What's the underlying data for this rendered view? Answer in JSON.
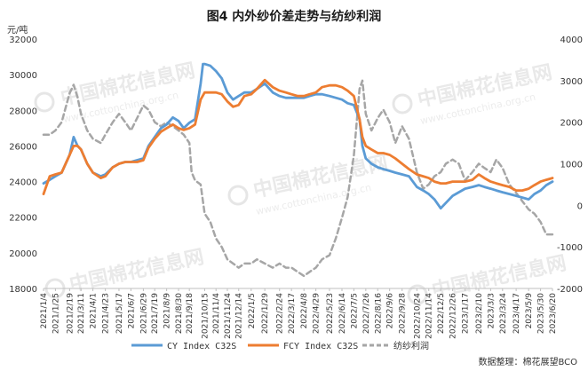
{
  "chart_data": {
    "type": "line",
    "title": "图4  内外纱价差走势与纺纱利润",
    "y_left_unit": "元/吨",
    "ylim_left": [
      18000,
      32000
    ],
    "yticks_left": [
      "18000",
      "20000",
      "22000",
      "24000",
      "26000",
      "28000",
      "30000",
      "32000"
    ],
    "ylim_right": [
      -2000,
      4000
    ],
    "yticks_right": [
      "-2000",
      "-1000",
      "0",
      "1000",
      "2000",
      "3000",
      "4000"
    ],
    "x_start": "2021/1/4",
    "x_end": "2023/6/20",
    "x_tick_labels": [
      "2021/1/4",
      "2021/1/25",
      "2021/2/19",
      "2021/3/11",
      "2021/4/1",
      "2021/4/23",
      "2021/5/17",
      "2021/6/7",
      "2021/6/29",
      "2021/7/19",
      "2021/8/9",
      "2021/8/30",
      "2021/9/18",
      "2021/10/15",
      "2021/11/4",
      "2021/11/24",
      "2021/12/14",
      "2022/1/5",
      "2022/1/29",
      "2022/2/24",
      "2022/3/17",
      "2022/4/8",
      "2022/4/29",
      "2022/5/23",
      "2022/6/14",
      "2022/7/5",
      "2022/7/26",
      "2022/8/16",
      "2022/9/6",
      "2022/9/28",
      "2022/10/24",
      "2022/11/14",
      "2022/12/5",
      "2022/12/26",
      "2023/1/17",
      "2023/2/10",
      "2023/3/3",
      "2023/3/24",
      "2023/4/17",
      "2023/5/9",
      "2023/5/30",
      "2023/6/20"
    ],
    "series": [
      {
        "name": "CY Index C32S",
        "axis": "left",
        "color": "#5b9bd5",
        "style": "solid",
        "points": [
          [
            "2021/1/4",
            23900
          ],
          [
            "2021/1/15",
            24100
          ],
          [
            "2021/1/25",
            24300
          ],
          [
            "2021/2/5",
            24500
          ],
          [
            "2021/2/19",
            25500
          ],
          [
            "2021/2/26",
            26500
          ],
          [
            "2021/3/5",
            26000
          ],
          [
            "2021/3/11",
            25800
          ],
          [
            "2021/3/22",
            25000
          ],
          [
            "2021/4/1",
            24500
          ],
          [
            "2021/4/15",
            24300
          ],
          [
            "2021/4/23",
            24400
          ],
          [
            "2021/5/6",
            24800
          ],
          [
            "2021/5/17",
            25000
          ],
          [
            "2021/5/28",
            25100
          ],
          [
            "2021/6/7",
            25100
          ],
          [
            "2021/6/18",
            25200
          ],
          [
            "2021/6/29",
            25300
          ],
          [
            "2021/7/8",
            26000
          ],
          [
            "2021/7/19",
            26500
          ],
          [
            "2021/7/30",
            27000
          ],
          [
            "2021/8/9",
            27200
          ],
          [
            "2021/8/20",
            27600
          ],
          [
            "2021/8/30",
            27400
          ],
          [
            "2021/9/8",
            27000
          ],
          [
            "2021/9/18",
            27300
          ],
          [
            "2021/9/28",
            27500
          ],
          [
            "2021/10/8",
            29500
          ],
          [
            "2021/10/12",
            30600
          ],
          [
            "2021/10/15",
            30600
          ],
          [
            "2021/10/25",
            30500
          ],
          [
            "2021/11/4",
            30200
          ],
          [
            "2021/11/14",
            29800
          ],
          [
            "2021/11/24",
            29000
          ],
          [
            "2021/12/4",
            28600
          ],
          [
            "2021/12/14",
            28800
          ],
          [
            "2021/12/24",
            29000
          ],
          [
            "2022/1/5",
            29000
          ],
          [
            "2022/1/15",
            29200
          ],
          [
            "2022/1/29",
            29500
          ],
          [
            "2022/2/12",
            29000
          ],
          [
            "2022/2/24",
            28800
          ],
          [
            "2022/3/7",
            28700
          ],
          [
            "2022/3/17",
            28700
          ],
          [
            "2022/3/28",
            28700
          ],
          [
            "2022/4/8",
            28700
          ],
          [
            "2022/4/18",
            28800
          ],
          [
            "2022/4/29",
            28900
          ],
          [
            "2022/5/10",
            28900
          ],
          [
            "2022/5/23",
            28800
          ],
          [
            "2022/6/3",
            28700
          ],
          [
            "2022/6/14",
            28600
          ],
          [
            "2022/6/24",
            28400
          ],
          [
            "2022/7/5",
            28300
          ],
          [
            "2022/7/15",
            27500
          ],
          [
            "2022/7/20",
            26000
          ],
          [
            "2022/7/26",
            25300
          ],
          [
            "2022/8/5",
            25000
          ],
          [
            "2022/8/16",
            24800
          ],
          [
            "2022/8/26",
            24700
          ],
          [
            "2022/9/6",
            24600
          ],
          [
            "2022/9/16",
            24500
          ],
          [
            "2022/9/28",
            24400
          ],
          [
            "2022/10/10",
            24300
          ],
          [
            "2022/10/24",
            23700
          ],
          [
            "2022/11/4",
            23500
          ],
          [
            "2022/11/14",
            23300
          ],
          [
            "2022/11/24",
            23000
          ],
          [
            "2022/12/5",
            22500
          ],
          [
            "2022/12/14",
            22800
          ],
          [
            "2022/12/26",
            23200
          ],
          [
            "2023/1/6",
            23400
          ],
          [
            "2023/1/17",
            23600
          ],
          [
            "2023/1/30",
            23700
          ],
          [
            "2023/2/10",
            23800
          ],
          [
            "2023/2/20",
            23700
          ],
          [
            "2023/3/3",
            23600
          ],
          [
            "2023/3/13",
            23500
          ],
          [
            "2023/3/24",
            23400
          ],
          [
            "2023/4/5",
            23300
          ],
          [
            "2023/4/17",
            23200
          ],
          [
            "2023/4/28",
            23100
          ],
          [
            "2023/5/9",
            23000
          ],
          [
            "2023/5/19",
            23300
          ],
          [
            "2023/5/30",
            23500
          ],
          [
            "2023/6/9",
            23800
          ],
          [
            "2023/6/20",
            24000
          ]
        ]
      },
      {
        "name": "FCY Index C32S",
        "axis": "left",
        "color": "#ed7d31",
        "style": "solid",
        "points": [
          [
            "2021/1/4",
            23300
          ],
          [
            "2021/1/15",
            24300
          ],
          [
            "2021/1/25",
            24400
          ],
          [
            "2021/2/5",
            24500
          ],
          [
            "2021/2/19",
            25500
          ],
          [
            "2021/2/26",
            26000
          ],
          [
            "2021/3/5",
            26000
          ],
          [
            "2021/3/11",
            25800
          ],
          [
            "2021/3/22",
            25000
          ],
          [
            "2021/4/1",
            24500
          ],
          [
            "2021/4/15",
            24200
          ],
          [
            "2021/4/23",
            24300
          ],
          [
            "2021/5/6",
            24800
          ],
          [
            "2021/5/17",
            25000
          ],
          [
            "2021/5/28",
            25100
          ],
          [
            "2021/6/7",
            25100
          ],
          [
            "2021/6/18",
            25100
          ],
          [
            "2021/6/29",
            25200
          ],
          [
            "2021/7/8",
            25900
          ],
          [
            "2021/7/19",
            26400
          ],
          [
            "2021/7/30",
            26800
          ],
          [
            "2021/8/9",
            27000
          ],
          [
            "2021/8/20",
            27200
          ],
          [
            "2021/8/30",
            27000
          ],
          [
            "2021/9/8",
            26900
          ],
          [
            "2021/9/18",
            27000
          ],
          [
            "2021/9/28",
            27200
          ],
          [
            "2021/10/8",
            28600
          ],
          [
            "2021/10/15",
            29000
          ],
          [
            "2021/10/25",
            29000
          ],
          [
            "2021/11/4",
            29000
          ],
          [
            "2021/11/14",
            28900
          ],
          [
            "2021/11/24",
            28500
          ],
          [
            "2021/12/4",
            28200
          ],
          [
            "2021/12/14",
            28300
          ],
          [
            "2021/12/24",
            28800
          ],
          [
            "2022/1/5",
            28900
          ],
          [
            "2022/1/15",
            29200
          ],
          [
            "2022/1/29",
            29700
          ],
          [
            "2022/2/12",
            29300
          ],
          [
            "2022/2/24",
            29100
          ],
          [
            "2022/3/7",
            29000
          ],
          [
            "2022/3/17",
            28900
          ],
          [
            "2022/3/28",
            28800
          ],
          [
            "2022/4/8",
            28800
          ],
          [
            "2022/4/18",
            28900
          ],
          [
            "2022/4/29",
            29000
          ],
          [
            "2022/5/10",
            29300
          ],
          [
            "2022/5/23",
            29400
          ],
          [
            "2022/6/3",
            29400
          ],
          [
            "2022/6/14",
            29300
          ],
          [
            "2022/6/24",
            29100
          ],
          [
            "2022/7/5",
            28800
          ],
          [
            "2022/7/15",
            27500
          ],
          [
            "2022/7/20",
            26500
          ],
          [
            "2022/7/26",
            26000
          ],
          [
            "2022/8/5",
            25800
          ],
          [
            "2022/8/16",
            25600
          ],
          [
            "2022/8/26",
            25600
          ],
          [
            "2022/9/6",
            25500
          ],
          [
            "2022/9/16",
            25300
          ],
          [
            "2022/9/28",
            25000
          ],
          [
            "2022/10/10",
            24700
          ],
          [
            "2022/10/24",
            24400
          ],
          [
            "2022/11/4",
            24300
          ],
          [
            "2022/11/14",
            24200
          ],
          [
            "2022/11/24",
            24000
          ],
          [
            "2022/12/5",
            23900
          ],
          [
            "2022/12/14",
            23900
          ],
          [
            "2022/12/26",
            24000
          ],
          [
            "2023/1/6",
            24000
          ],
          [
            "2023/1/17",
            24000
          ],
          [
            "2023/1/30",
            24100
          ],
          [
            "2023/2/10",
            24400
          ],
          [
            "2023/2/20",
            24200
          ],
          [
            "2023/3/3",
            24000
          ],
          [
            "2023/3/13",
            23900
          ],
          [
            "2023/3/24",
            23800
          ],
          [
            "2023/4/5",
            23700
          ],
          [
            "2023/4/17",
            23500
          ],
          [
            "2023/4/28",
            23500
          ],
          [
            "2023/5/9",
            23600
          ],
          [
            "2023/5/19",
            23800
          ],
          [
            "2023/5/30",
            24000
          ],
          [
            "2023/6/9",
            24100
          ],
          [
            "2023/6/20",
            24200
          ]
        ]
      },
      {
        "name": "纺纱利润",
        "axis": "right",
        "color": "#a6a6a6",
        "style": "dashed",
        "points": [
          [
            "2021/1/4",
            1700
          ],
          [
            "2021/1/15",
            1700
          ],
          [
            "2021/1/25",
            1800
          ],
          [
            "2021/2/5",
            2000
          ],
          [
            "2021/2/19",
            2700
          ],
          [
            "2021/2/26",
            2900
          ],
          [
            "2021/3/5",
            2600
          ],
          [
            "2021/3/11",
            2200
          ],
          [
            "2021/3/22",
            1800
          ],
          [
            "2021/4/1",
            1600
          ],
          [
            "2021/4/15",
            1500
          ],
          [
            "2021/4/23",
            1700
          ],
          [
            "2021/5/6",
            2000
          ],
          [
            "2021/5/17",
            2200
          ],
          [
            "2021/5/28",
            2000
          ],
          [
            "2021/6/7",
            1800
          ],
          [
            "2021/6/18",
            2100
          ],
          [
            "2021/6/29",
            2400
          ],
          [
            "2021/7/8",
            2300
          ],
          [
            "2021/7/19",
            2000
          ],
          [
            "2021/7/30",
            1900
          ],
          [
            "2021/8/9",
            2000
          ],
          [
            "2021/8/20",
            1900
          ],
          [
            "2021/8/30",
            1800
          ],
          [
            "2021/9/8",
            1700
          ],
          [
            "2021/9/18",
            1500
          ],
          [
            "2021/9/22",
            800
          ],
          [
            "2021/9/28",
            600
          ],
          [
            "2021/10/8",
            500
          ],
          [
            "2021/10/15",
            -200
          ],
          [
            "2021/10/25",
            -400
          ],
          [
            "2021/11/4",
            -800
          ],
          [
            "2021/11/14",
            -1000
          ],
          [
            "2021/11/24",
            -1300
          ],
          [
            "2021/12/4",
            -1400
          ],
          [
            "2021/12/14",
            -1500
          ],
          [
            "2021/12/24",
            -1400
          ],
          [
            "2022/1/5",
            -1400
          ],
          [
            "2022/1/15",
            -1300
          ],
          [
            "2022/1/29",
            -1400
          ],
          [
            "2022/2/12",
            -1500
          ],
          [
            "2022/2/24",
            -1400
          ],
          [
            "2022/3/7",
            -1500
          ],
          [
            "2022/3/17",
            -1500
          ],
          [
            "2022/3/28",
            -1600
          ],
          [
            "2022/4/8",
            -1700
          ],
          [
            "2022/4/18",
            -1600
          ],
          [
            "2022/4/29",
            -1500
          ],
          [
            "2022/5/10",
            -1300
          ],
          [
            "2022/5/23",
            -1200
          ],
          [
            "2022/6/3",
            -800
          ],
          [
            "2022/6/14",
            -300
          ],
          [
            "2022/6/24",
            200
          ],
          [
            "2022/7/5",
            1200
          ],
          [
            "2022/7/15",
            2800
          ],
          [
            "2022/7/20",
            3000
          ],
          [
            "2022/7/26",
            2200
          ],
          [
            "2022/8/5",
            1800
          ],
          [
            "2022/8/16",
            2100
          ],
          [
            "2022/8/26",
            2300
          ],
          [
            "2022/9/6",
            2000
          ],
          [
            "2022/9/16",
            1500
          ],
          [
            "2022/9/28",
            1900
          ],
          [
            "2022/10/10",
            1600
          ],
          [
            "2022/10/24",
            800
          ],
          [
            "2022/11/4",
            400
          ],
          [
            "2022/11/14",
            500
          ],
          [
            "2022/11/24",
            700
          ],
          [
            "2022/12/5",
            800
          ],
          [
            "2022/12/14",
            1000
          ],
          [
            "2022/12/26",
            1100
          ],
          [
            "2023/1/6",
            1000
          ],
          [
            "2023/1/17",
            600
          ],
          [
            "2023/1/30",
            800
          ],
          [
            "2023/2/10",
            1000
          ],
          [
            "2023/2/20",
            900
          ],
          [
            "2023/3/3",
            800
          ],
          [
            "2023/3/13",
            1100
          ],
          [
            "2023/3/24",
            900
          ],
          [
            "2023/4/5",
            500
          ],
          [
            "2023/4/17",
            300
          ],
          [
            "2023/4/28",
            100
          ],
          [
            "2023/5/9",
            -100
          ],
          [
            "2023/5/19",
            -200
          ],
          [
            "2023/5/30",
            -400
          ],
          [
            "2023/6/9",
            -700
          ],
          [
            "2023/6/20",
            -700
          ]
        ]
      }
    ],
    "legend_position": "bottom",
    "source_note": "数据整理：棉花展望BCO",
    "grid": false
  },
  "watermark": {
    "brand": "中国棉花信息网",
    "url": "www.cottonchina.org.cn"
  }
}
